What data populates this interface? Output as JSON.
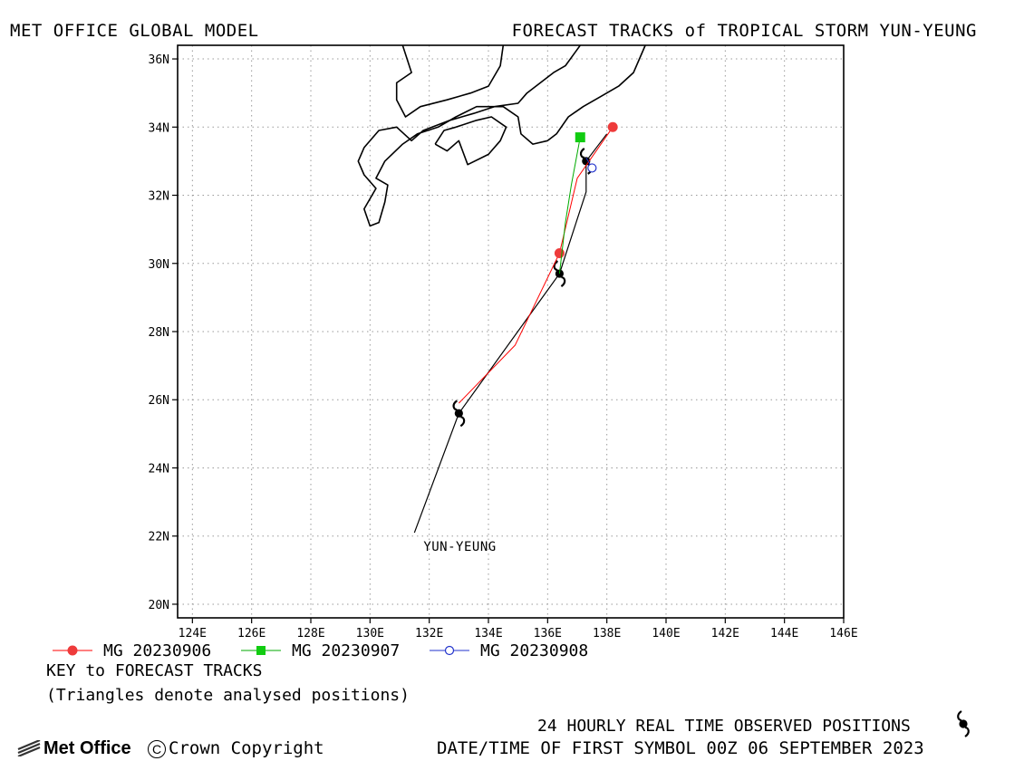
{
  "header": {
    "left": "MET OFFICE GLOBAL MODEL",
    "right": "FORECAST TRACKS of TROPICAL STORM YUN-YEUNG"
  },
  "map": {
    "lon_range": [
      123.5,
      146.0
    ],
    "lat_range": [
      19.6,
      36.4
    ],
    "lon_ticks": [
      124,
      126,
      128,
      130,
      132,
      134,
      136,
      138,
      140,
      142,
      144,
      146
    ],
    "lat_ticks": [
      20,
      22,
      24,
      26,
      28,
      30,
      32,
      34,
      36
    ],
    "lon_tick_labels": [
      "124E",
      "126E",
      "128E",
      "130E",
      "132E",
      "134E",
      "136E",
      "138E",
      "140E",
      "142E",
      "144E",
      "146E"
    ],
    "lat_tick_labels": [
      "20N",
      "22N",
      "24N",
      "26N",
      "28N",
      "30N",
      "32N",
      "34N",
      "36N"
    ],
    "grid": true,
    "storm_label": "YUN-YEUNG",
    "coastlines": [
      [
        [
          131.1,
          36.4
        ],
        [
          131.4,
          35.6
        ],
        [
          130.9,
          35.3
        ],
        [
          130.9,
          34.8
        ],
        [
          131.2,
          34.3
        ],
        [
          131.7,
          34.6
        ],
        [
          132.6,
          34.8
        ],
        [
          133.4,
          35.0
        ],
        [
          134.0,
          35.2
        ],
        [
          134.4,
          35.8
        ],
        [
          134.5,
          36.4
        ]
      ],
      [
        [
          139.3,
          36.4
        ],
        [
          138.9,
          35.6
        ],
        [
          138.4,
          35.2
        ],
        [
          137.8,
          34.9
        ],
        [
          137.2,
          34.6
        ],
        [
          136.7,
          34.3
        ],
        [
          136.3,
          33.8
        ],
        [
          136.0,
          33.6
        ],
        [
          135.5,
          33.5
        ],
        [
          135.1,
          33.8
        ],
        [
          135.0,
          34.3
        ],
        [
          134.5,
          34.6
        ],
        [
          133.6,
          34.6
        ],
        [
          132.9,
          34.3
        ],
        [
          132.3,
          34.0
        ],
        [
          131.6,
          33.8
        ],
        [
          131.1,
          33.5
        ],
        [
          130.5,
          33.0
        ],
        [
          130.2,
          32.5
        ],
        [
          130.6,
          32.3
        ],
        [
          130.5,
          31.8
        ],
        [
          130.3,
          31.2
        ],
        [
          130.0,
          31.1
        ],
        [
          129.8,
          31.6
        ],
        [
          130.2,
          32.2
        ],
        [
          129.8,
          32.6
        ],
        [
          129.6,
          33.0
        ],
        [
          129.8,
          33.4
        ],
        [
          130.3,
          33.9
        ],
        [
          130.9,
          34.0
        ],
        [
          131.4,
          33.6
        ],
        [
          131.8,
          33.9
        ],
        [
          132.7,
          34.2
        ],
        [
          133.5,
          34.4
        ],
        [
          134.2,
          34.6
        ],
        [
          135.0,
          34.7
        ],
        [
          135.3,
          35.0
        ],
        [
          136.2,
          35.6
        ],
        [
          136.6,
          35.8
        ],
        [
          137.1,
          36.4
        ]
      ],
      [
        [
          132.2,
          33.5
        ],
        [
          132.6,
          33.3
        ],
        [
          133.0,
          33.6
        ],
        [
          133.3,
          32.9
        ],
        [
          134.0,
          33.2
        ],
        [
          134.4,
          33.6
        ],
        [
          134.6,
          34.0
        ],
        [
          134.1,
          34.3
        ],
        [
          133.6,
          34.2
        ],
        [
          132.9,
          34.0
        ],
        [
          132.5,
          33.9
        ],
        [
          132.2,
          33.5
        ]
      ]
    ]
  },
  "tracks": [
    {
      "name": "MG 20230906",
      "color": "#ff0000",
      "marker_color": "#ee3b3b",
      "marker": "circle",
      "points": [
        [
          133.0,
          25.9
        ],
        [
          134.9,
          27.6
        ],
        [
          136.4,
          30.3
        ],
        [
          137.0,
          32.5
        ],
        [
          138.2,
          34.0
        ]
      ],
      "marked": [
        [
          136.4,
          30.3
        ],
        [
          138.2,
          34.0
        ]
      ]
    },
    {
      "name": "MG 20230907",
      "color": "#00aa00",
      "marker_color": "#11cc11",
      "marker": "square",
      "points": [
        [
          136.4,
          29.7
        ],
        [
          136.6,
          31.2
        ],
        [
          136.8,
          32.3
        ],
        [
          137.1,
          33.7
        ]
      ],
      "marked": [
        [
          137.1,
          33.7
        ]
      ]
    },
    {
      "name": "MG 20230908",
      "color": "#2233cc",
      "marker_color": "#2233cc",
      "marker": "open-circle",
      "points": [
        [
          137.3,
          33.1
        ],
        [
          137.5,
          32.8
        ]
      ],
      "marked": [
        [
          137.5,
          32.8
        ]
      ]
    }
  ],
  "observed_track": {
    "color": "#000000",
    "points": [
      [
        131.5,
        22.1
      ],
      [
        133.0,
        25.6
      ],
      [
        136.4,
        29.7
      ],
      [
        137.3,
        32.1
      ],
      [
        137.3,
        33.0
      ],
      [
        138.0,
        33.8
      ]
    ],
    "symbols": [
      [
        133.0,
        25.6
      ],
      [
        136.4,
        29.7
      ],
      [
        137.3,
        33.0
      ]
    ]
  },
  "key": {
    "title": "KEY to FORECAST TRACKS",
    "note": "(Triangles denote analysed positions)"
  },
  "footer": {
    "observed": "24 HOURLY REAL TIME OBSERVED POSITIONS",
    "datetime": "DATE/TIME OF FIRST SYMBOL 00Z 06 SEPTEMBER 2023",
    "logo": "Met Office",
    "copyright": "Crown Copyright"
  },
  "icons": {
    "cyclone": "tropical-cyclone-symbol",
    "logo": "met-office-logo"
  }
}
